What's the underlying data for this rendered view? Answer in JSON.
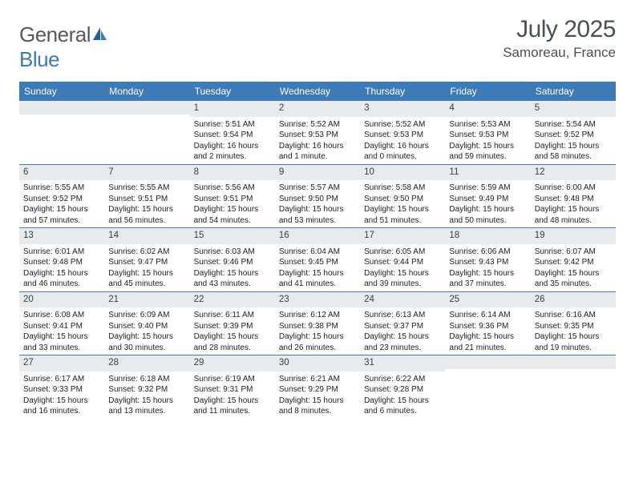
{
  "brand": {
    "general": "General",
    "blue": "Blue"
  },
  "title": "July 2025",
  "location": "Samoreau, France",
  "colors": {
    "header_bg": "#3b7cb8",
    "daynum_bg": "#e8eaec",
    "week_border": "#3b7cb8",
    "text": "#333333",
    "title_text": "#4a4f55"
  },
  "day_headers": [
    "Sunday",
    "Monday",
    "Tuesday",
    "Wednesday",
    "Thursday",
    "Friday",
    "Saturday"
  ],
  "weeks": [
    [
      {
        "n": "",
        "sr": "",
        "ss": "",
        "dl": ""
      },
      {
        "n": "",
        "sr": "",
        "ss": "",
        "dl": ""
      },
      {
        "n": "1",
        "sr": "Sunrise: 5:51 AM",
        "ss": "Sunset: 9:54 PM",
        "dl": "Daylight: 16 hours and 2 minutes."
      },
      {
        "n": "2",
        "sr": "Sunrise: 5:52 AM",
        "ss": "Sunset: 9:53 PM",
        "dl": "Daylight: 16 hours and 1 minute."
      },
      {
        "n": "3",
        "sr": "Sunrise: 5:52 AM",
        "ss": "Sunset: 9:53 PM",
        "dl": "Daylight: 16 hours and 0 minutes."
      },
      {
        "n": "4",
        "sr": "Sunrise: 5:53 AM",
        "ss": "Sunset: 9:53 PM",
        "dl": "Daylight: 15 hours and 59 minutes."
      },
      {
        "n": "5",
        "sr": "Sunrise: 5:54 AM",
        "ss": "Sunset: 9:52 PM",
        "dl": "Daylight: 15 hours and 58 minutes."
      }
    ],
    [
      {
        "n": "6",
        "sr": "Sunrise: 5:55 AM",
        "ss": "Sunset: 9:52 PM",
        "dl": "Daylight: 15 hours and 57 minutes."
      },
      {
        "n": "7",
        "sr": "Sunrise: 5:55 AM",
        "ss": "Sunset: 9:51 PM",
        "dl": "Daylight: 15 hours and 56 minutes."
      },
      {
        "n": "8",
        "sr": "Sunrise: 5:56 AM",
        "ss": "Sunset: 9:51 PM",
        "dl": "Daylight: 15 hours and 54 minutes."
      },
      {
        "n": "9",
        "sr": "Sunrise: 5:57 AM",
        "ss": "Sunset: 9:50 PM",
        "dl": "Daylight: 15 hours and 53 minutes."
      },
      {
        "n": "10",
        "sr": "Sunrise: 5:58 AM",
        "ss": "Sunset: 9:50 PM",
        "dl": "Daylight: 15 hours and 51 minutes."
      },
      {
        "n": "11",
        "sr": "Sunrise: 5:59 AM",
        "ss": "Sunset: 9:49 PM",
        "dl": "Daylight: 15 hours and 50 minutes."
      },
      {
        "n": "12",
        "sr": "Sunrise: 6:00 AM",
        "ss": "Sunset: 9:48 PM",
        "dl": "Daylight: 15 hours and 48 minutes."
      }
    ],
    [
      {
        "n": "13",
        "sr": "Sunrise: 6:01 AM",
        "ss": "Sunset: 9:48 PM",
        "dl": "Daylight: 15 hours and 46 minutes."
      },
      {
        "n": "14",
        "sr": "Sunrise: 6:02 AM",
        "ss": "Sunset: 9:47 PM",
        "dl": "Daylight: 15 hours and 45 minutes."
      },
      {
        "n": "15",
        "sr": "Sunrise: 6:03 AM",
        "ss": "Sunset: 9:46 PM",
        "dl": "Daylight: 15 hours and 43 minutes."
      },
      {
        "n": "16",
        "sr": "Sunrise: 6:04 AM",
        "ss": "Sunset: 9:45 PM",
        "dl": "Daylight: 15 hours and 41 minutes."
      },
      {
        "n": "17",
        "sr": "Sunrise: 6:05 AM",
        "ss": "Sunset: 9:44 PM",
        "dl": "Daylight: 15 hours and 39 minutes."
      },
      {
        "n": "18",
        "sr": "Sunrise: 6:06 AM",
        "ss": "Sunset: 9:43 PM",
        "dl": "Daylight: 15 hours and 37 minutes."
      },
      {
        "n": "19",
        "sr": "Sunrise: 6:07 AM",
        "ss": "Sunset: 9:42 PM",
        "dl": "Daylight: 15 hours and 35 minutes."
      }
    ],
    [
      {
        "n": "20",
        "sr": "Sunrise: 6:08 AM",
        "ss": "Sunset: 9:41 PM",
        "dl": "Daylight: 15 hours and 33 minutes."
      },
      {
        "n": "21",
        "sr": "Sunrise: 6:09 AM",
        "ss": "Sunset: 9:40 PM",
        "dl": "Daylight: 15 hours and 30 minutes."
      },
      {
        "n": "22",
        "sr": "Sunrise: 6:11 AM",
        "ss": "Sunset: 9:39 PM",
        "dl": "Daylight: 15 hours and 28 minutes."
      },
      {
        "n": "23",
        "sr": "Sunrise: 6:12 AM",
        "ss": "Sunset: 9:38 PM",
        "dl": "Daylight: 15 hours and 26 minutes."
      },
      {
        "n": "24",
        "sr": "Sunrise: 6:13 AM",
        "ss": "Sunset: 9:37 PM",
        "dl": "Daylight: 15 hours and 23 minutes."
      },
      {
        "n": "25",
        "sr": "Sunrise: 6:14 AM",
        "ss": "Sunset: 9:36 PM",
        "dl": "Daylight: 15 hours and 21 minutes."
      },
      {
        "n": "26",
        "sr": "Sunrise: 6:16 AM",
        "ss": "Sunset: 9:35 PM",
        "dl": "Daylight: 15 hours and 19 minutes."
      }
    ],
    [
      {
        "n": "27",
        "sr": "Sunrise: 6:17 AM",
        "ss": "Sunset: 9:33 PM",
        "dl": "Daylight: 15 hours and 16 minutes."
      },
      {
        "n": "28",
        "sr": "Sunrise: 6:18 AM",
        "ss": "Sunset: 9:32 PM",
        "dl": "Daylight: 15 hours and 13 minutes."
      },
      {
        "n": "29",
        "sr": "Sunrise: 6:19 AM",
        "ss": "Sunset: 9:31 PM",
        "dl": "Daylight: 15 hours and 11 minutes."
      },
      {
        "n": "30",
        "sr": "Sunrise: 6:21 AM",
        "ss": "Sunset: 9:29 PM",
        "dl": "Daylight: 15 hours and 8 minutes."
      },
      {
        "n": "31",
        "sr": "Sunrise: 6:22 AM",
        "ss": "Sunset: 9:28 PM",
        "dl": "Daylight: 15 hours and 6 minutes."
      },
      {
        "n": "",
        "sr": "",
        "ss": "",
        "dl": ""
      },
      {
        "n": "",
        "sr": "",
        "ss": "",
        "dl": ""
      }
    ]
  ]
}
